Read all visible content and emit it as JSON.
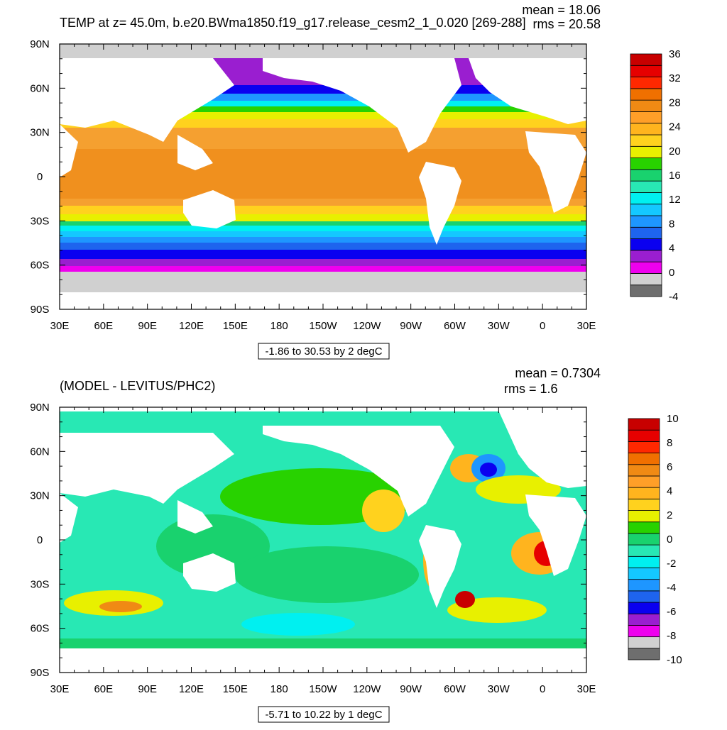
{
  "chart_data": [
    {
      "type": "heatmap",
      "title": "TEMP at z=  45.0m, b.e20.BWma1850.f19_g17.release_cesm2_1_0.020 [269-288]",
      "stats": {
        "mean": "mean = 18.06",
        "rms": "rms = 20.58"
      },
      "x_ticks": [
        "30E",
        "60E",
        "90E",
        "120E",
        "150E",
        "180",
        "150W",
        "120W",
        "90W",
        "60W",
        "30W",
        "0",
        "30E"
      ],
      "y_ticks": [
        "90N",
        "60N",
        "30N",
        "0",
        "30S",
        "60S",
        "90S"
      ],
      "range_note": "-1.86 to 30.53 by 2 degC",
      "colorbar": {
        "labels": [
          "36",
          "32",
          "28",
          "24",
          "20",
          "16",
          "12",
          "8",
          "4",
          "0",
          "-4"
        ],
        "levels": [
          -4,
          -2,
          0,
          2,
          4,
          6,
          8,
          10,
          12,
          14,
          16,
          18,
          20,
          22,
          24,
          26,
          28,
          30,
          32,
          34,
          36
        ],
        "colors": [
          "#6e6e6e",
          "#d0d0d0",
          "#ee00ee",
          "#9a1ed0",
          "#0a00f0",
          "#1e64ee",
          "#1e96ff",
          "#14c8ff",
          "#00f0f0",
          "#28e8b4",
          "#19d26e",
          "#28d200",
          "#e8f000",
          "#ffd21e",
          "#ffb41e",
          "#ff9f28",
          "#f08a14",
          "#f07000",
          "#ff2800",
          "#e60000",
          "#c80000"
        ]
      },
      "land_color": "#ffffff",
      "missing_color": "#d0d0d0"
    },
    {
      "type": "heatmap",
      "title": "(MODEL - LEVITUS/PHC2)",
      "stats": {
        "mean": "mean = 0.7304",
        "rms": "rms = 1.6"
      },
      "x_ticks": [
        "30E",
        "60E",
        "90E",
        "120E",
        "150E",
        "180",
        "150W",
        "120W",
        "90W",
        "60W",
        "30W",
        "0",
        "30E"
      ],
      "y_ticks": [
        "90N",
        "60N",
        "30N",
        "0",
        "30S",
        "60S",
        "90S"
      ],
      "range_note": "-5.71 to 10.22 by 1 degC",
      "colorbar": {
        "labels": [
          "10",
          "8",
          "6",
          "4",
          "2",
          "0",
          "-2",
          "-4",
          "-6",
          "-8",
          "-10"
        ],
        "levels": [
          -10,
          -9,
          -8,
          -7,
          -6,
          -5,
          -4,
          -3,
          -2,
          -1,
          0,
          1,
          2,
          3,
          4,
          5,
          6,
          7,
          8,
          9,
          10
        ],
        "colors": [
          "#6e6e6e",
          "#d0d0d0",
          "#ee00ee",
          "#9a1ed0",
          "#0a00f0",
          "#1e64ee",
          "#1e96ff",
          "#14c8ff",
          "#00f0f0",
          "#28e8b4",
          "#19d26e",
          "#28d200",
          "#e8f000",
          "#ffd21e",
          "#ffb41e",
          "#ff9f28",
          "#f08a14",
          "#f07000",
          "#ff2800",
          "#e60000",
          "#c80000"
        ]
      },
      "land_color": "#ffffff",
      "missing_color": "#d0d0d0"
    }
  ]
}
